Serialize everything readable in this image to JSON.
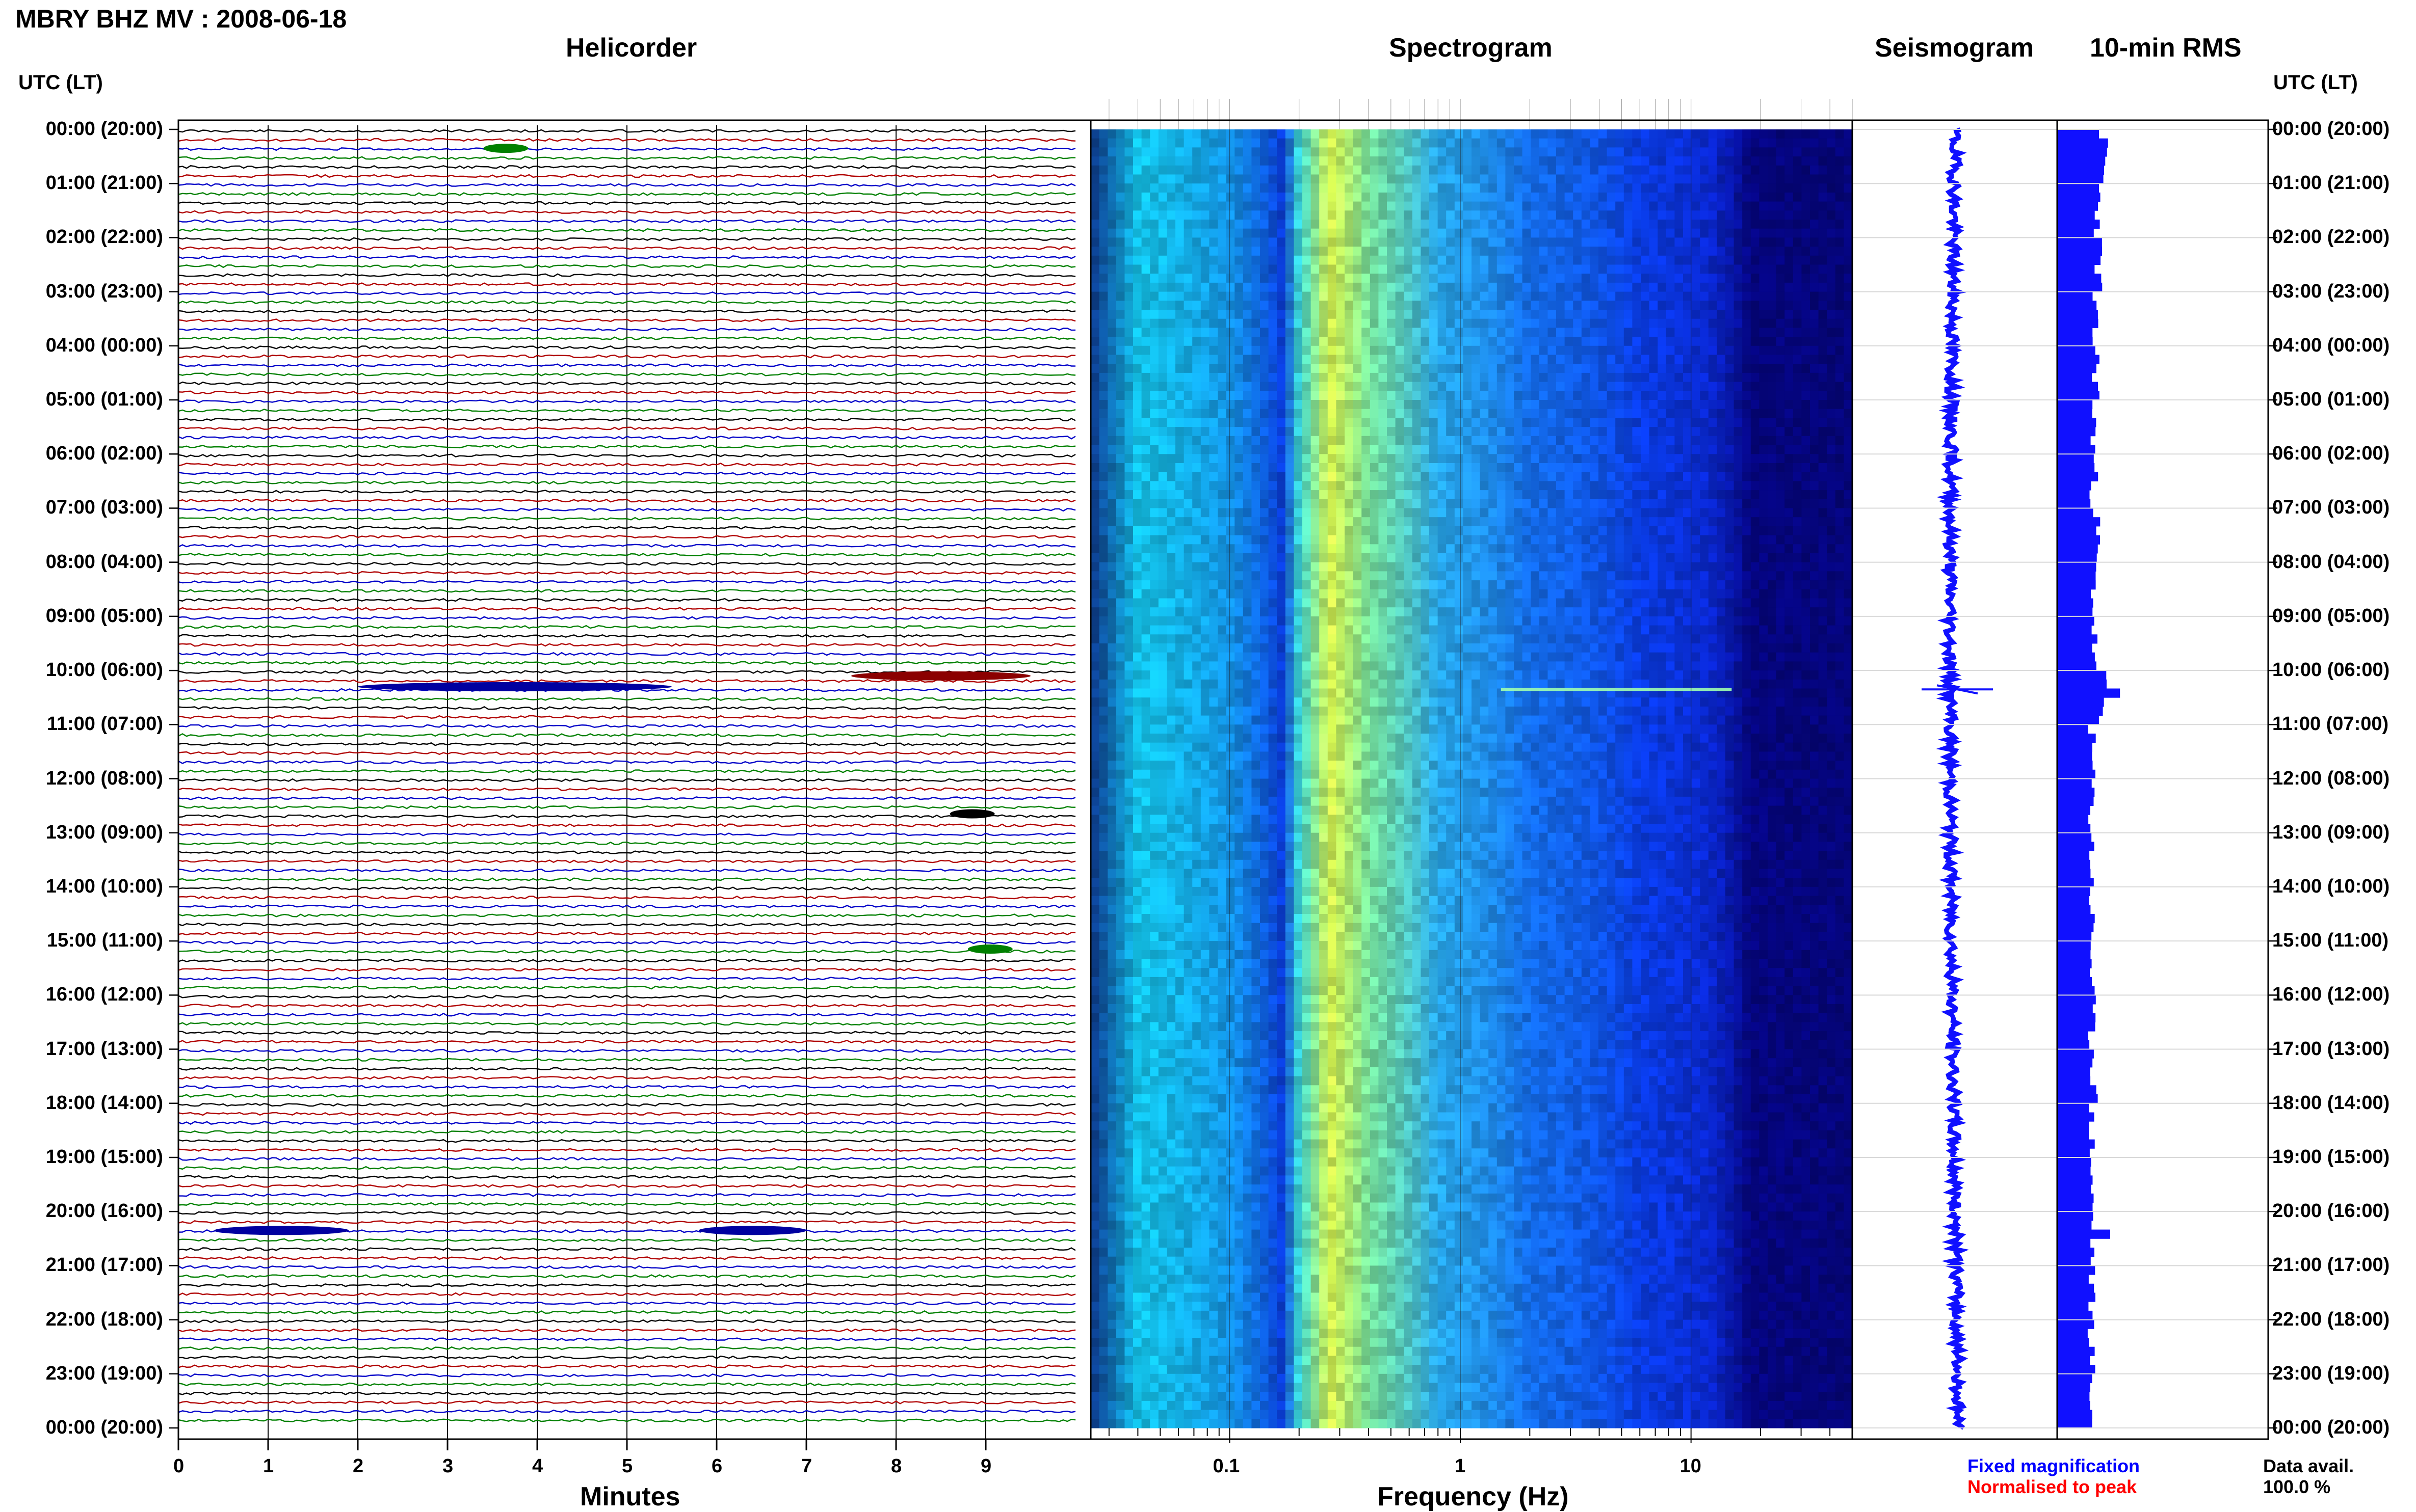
{
  "title": "MBRY BHZ MV : 2008-06-18",
  "panels": {
    "helicorder": "Helicorder",
    "spectrogram": "Spectrogram",
    "seismogram": "Seismogram",
    "rms": "10-min RMS"
  },
  "axis_head": "UTC (LT)",
  "time_labels": [
    "00:00 (20:00)",
    "01:00 (21:00)",
    "02:00 (22:00)",
    "03:00 (23:00)",
    "04:00 (00:00)",
    "05:00 (01:00)",
    "06:00 (02:00)",
    "07:00 (03:00)",
    "08:00 (04:00)",
    "09:00 (05:00)",
    "10:00 (06:00)",
    "11:00 (07:00)",
    "12:00 (08:00)",
    "13:00 (09:00)",
    "14:00 (10:00)",
    "15:00 (11:00)",
    "16:00 (12:00)",
    "17:00 (13:00)",
    "18:00 (14:00)",
    "19:00 (15:00)",
    "20:00 (16:00)",
    "21:00 (17:00)",
    "22:00 (18:00)",
    "23:00 (19:00)",
    "00:00 (20:00)"
  ],
  "helicorder_ticks": [
    "0",
    "1",
    "2",
    "3",
    "4",
    "5",
    "6",
    "7",
    "8",
    "9"
  ],
  "helicorder_xlabel": "Minutes",
  "spectrogram_ticks": [
    "0.1",
    "1",
    "10"
  ],
  "spectrogram_xlabel": "Frequency (Hz)",
  "legend": {
    "fixed": "Fixed magnification",
    "normalised": "Normalised to peak",
    "data_avail_label": "Data avail.",
    "data_avail_value": "100.0 %"
  },
  "colors": {
    "trace_cycle": [
      "#000000",
      "#b00000",
      "#0000c8",
      "#008000"
    ],
    "rms_fill": "#1010ff",
    "fixed_text": "#0000ff",
    "normalised_text": "#ff0000"
  },
  "chart_data": {
    "type": "heatmap",
    "helicorder": {
      "minutes_per_line": 10,
      "lines": 144,
      "events": [
        {
          "hour": 0.35,
          "minute": 3.4,
          "color": "green"
        },
        {
          "hour": 10.3,
          "minute": 2.0,
          "duration_min": 3.5,
          "color": "blue"
        },
        {
          "hour": 10.1,
          "minute": 7.5,
          "duration_min": 2.0,
          "color": "red"
        },
        {
          "hour": 12.65,
          "minute": 8.6,
          "color": "black"
        },
        {
          "hour": 15.15,
          "minute": 8.8,
          "color": "green"
        },
        {
          "hour": 20.35,
          "minute": 0.4,
          "duration_min": 1.5,
          "color": "blue"
        },
        {
          "hour": 20.35,
          "minute": 5.8,
          "duration_min": 1.2,
          "color": "blue"
        }
      ]
    },
    "spectrogram": {
      "x_scale": "log",
      "xlim": [
        0.025,
        50
      ],
      "peak_band_hz": [
        0.2,
        0.4
      ],
      "events": [
        {
          "hour": 10.35,
          "f_min": 1.5,
          "f_max": 15
        }
      ]
    },
    "rms": {
      "hours": [
        0,
        1,
        2,
        3,
        4,
        5,
        6,
        7,
        8,
        9,
        10,
        11,
        12,
        13,
        14,
        15,
        16,
        17,
        18,
        19,
        20,
        21,
        22,
        23
      ],
      "values": [
        1.0,
        0.9,
        0.9,
        0.8,
        0.85,
        0.8,
        0.8,
        0.85,
        0.8,
        0.8,
        1.4,
        0.75,
        0.75,
        0.75,
        0.75,
        0.75,
        0.75,
        0.8,
        0.75,
        0.75,
        1.1,
        0.75,
        0.75,
        0.75
      ]
    }
  }
}
